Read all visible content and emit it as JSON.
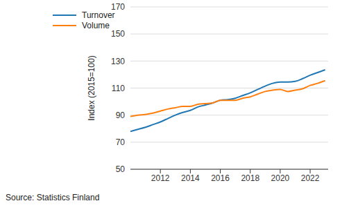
{
  "chart_data": {
    "type": "line",
    "y_label": "Index (2015=100)",
    "source": "Source: Statistics Finland",
    "x": [
      2010,
      2010.5,
      2011,
      2011.5,
      2012,
      2012.5,
      2013,
      2013.5,
      2014,
      2014.5,
      2015,
      2015.5,
      2016,
      2016.5,
      2017,
      2017.5,
      2018,
      2018.5,
      2019,
      2019.5,
      2020,
      2020.5,
      2021,
      2021.5,
      2022,
      2022.5,
      2023
    ],
    "series": [
      {
        "name": "Turnover",
        "color": "#1f77b4",
        "values": [
          78,
          79.5,
          81,
          83,
          85,
          87.5,
          90,
          92,
          93.5,
          96,
          97.5,
          99,
          101,
          101.5,
          102.5,
          104.5,
          106.5,
          109,
          111.5,
          113.5,
          114.5,
          114.5,
          115,
          117,
          119.5,
          121.5,
          123.5
        ]
      },
      {
        "name": "Volume",
        "color": "#ff7f0e",
        "values": [
          89,
          90,
          90.5,
          91.5,
          93,
          94.5,
          95.5,
          96.5,
          96.5,
          98,
          98.5,
          99,
          101,
          101,
          101,
          102.5,
          103.5,
          105.5,
          107.5,
          108.5,
          109,
          107.5,
          108.5,
          109.5,
          112,
          113.5,
          115.5
        ]
      }
    ],
    "xlim": [
      2010,
      2023.2
    ],
    "xticks": [
      2012,
      2014,
      2016,
      2018,
      2020,
      2022
    ],
    "ylim": [
      50,
      170
    ],
    "yticks": [
      50,
      70,
      90,
      110,
      130,
      150,
      170
    ],
    "grid": true,
    "legend": "top-left"
  }
}
